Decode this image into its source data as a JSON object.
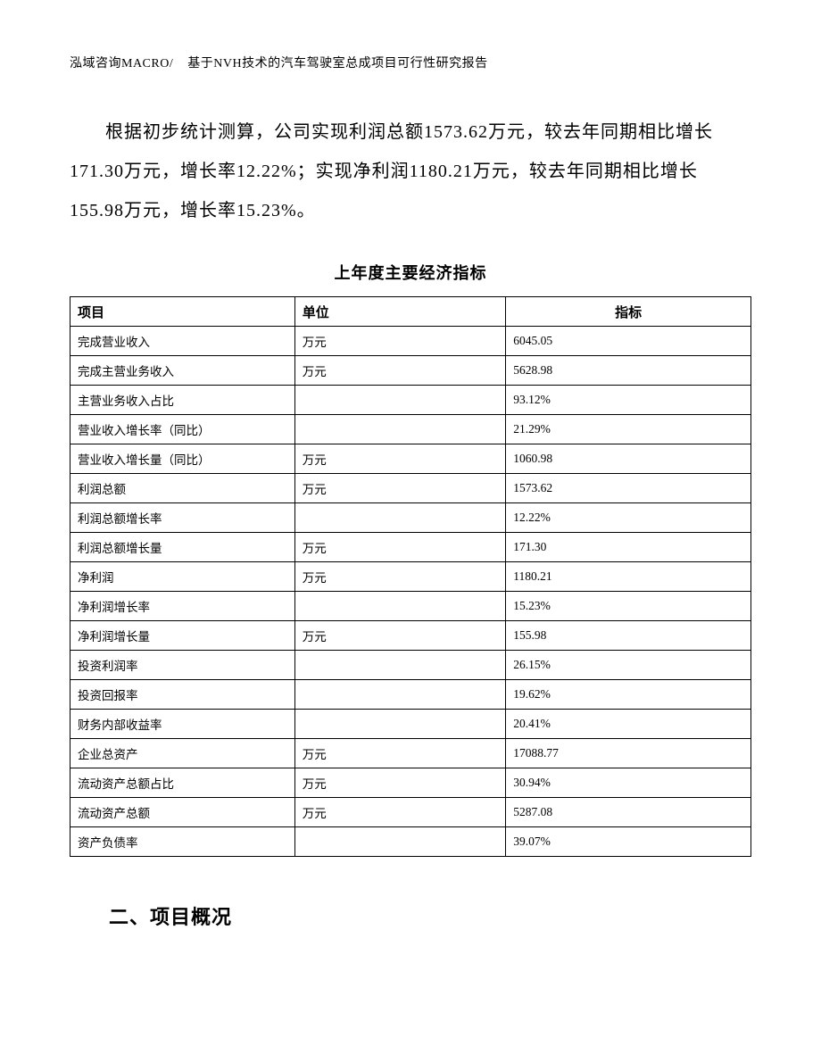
{
  "header": {
    "company": "泓域咨询MACRO/",
    "doc_title": "基于NVH技术的汽车驾驶室总成项目可行性研究报告"
  },
  "paragraph": "根据初步统计测算，公司实现利润总额1573.62万元，较去年同期相比增长171.30万元，增长率12.22%；实现净利润1180.21万元，较去年同期相比增长155.98万元，增长率15.23%。",
  "table": {
    "title": "上年度主要经济指标",
    "columns": {
      "c1": "项目",
      "c2": "单位",
      "c3": "指标"
    },
    "rows": [
      {
        "item": "完成营业收入",
        "unit": "万元",
        "value": "6045.05"
      },
      {
        "item": "完成主营业务收入",
        "unit": "万元",
        "value": "5628.98"
      },
      {
        "item": "主营业务收入占比",
        "unit": "",
        "value": "93.12%"
      },
      {
        "item": "营业收入增长率（同比）",
        "unit": "",
        "value": "21.29%"
      },
      {
        "item": "营业收入增长量（同比）",
        "unit": "万元",
        "value": "1060.98"
      },
      {
        "item": "利润总额",
        "unit": "万元",
        "value": "1573.62"
      },
      {
        "item": "利润总额增长率",
        "unit": "",
        "value": "12.22%"
      },
      {
        "item": "利润总额增长量",
        "unit": "万元",
        "value": "171.30"
      },
      {
        "item": "净利润",
        "unit": "万元",
        "value": "1180.21"
      },
      {
        "item": "净利润增长率",
        "unit": "",
        "value": "15.23%"
      },
      {
        "item": "净利润增长量",
        "unit": "万元",
        "value": "155.98"
      },
      {
        "item": "投资利润率",
        "unit": "",
        "value": "26.15%"
      },
      {
        "item": "投资回报率",
        "unit": "",
        "value": "19.62%"
      },
      {
        "item": "财务内部收益率",
        "unit": "",
        "value": "20.41%"
      },
      {
        "item": "企业总资产",
        "unit": "万元",
        "value": "17088.77"
      },
      {
        "item": "流动资产总额占比",
        "unit": "万元",
        "value": "30.94%"
      },
      {
        "item": "流动资产总额",
        "unit": "万元",
        "value": "5287.08"
      },
      {
        "item": "资产负债率",
        "unit": "",
        "value": "39.07%"
      }
    ]
  },
  "section_heading": "二、项目概况"
}
